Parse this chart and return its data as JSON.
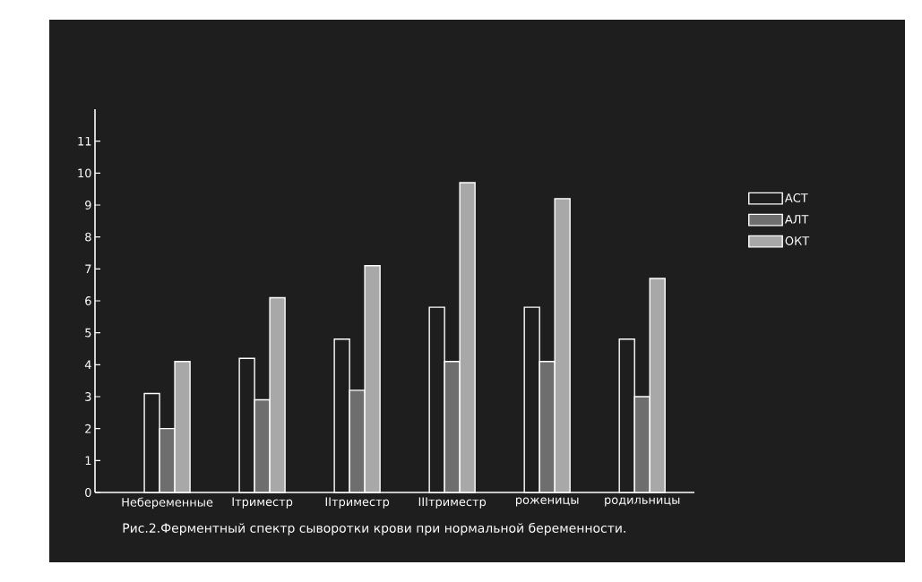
{
  "chart_data": {
    "type": "bar",
    "title": "Рис.2.Ферментный спектр сыворотки крови при нормальной беременности.",
    "categories": [
      "Небеременные",
      "Iтриместр",
      "IIтриместр",
      "IIIтриместр",
      "роженицы",
      "родильницы"
    ],
    "series": [
      {
        "name": "АСТ",
        "color": "#1e1e1e",
        "values": [
          3.1,
          4.2,
          4.8,
          5.8,
          5.8,
          4.8
        ]
      },
      {
        "name": "АЛТ",
        "color": "#6e6e6e",
        "values": [
          2.0,
          2.9,
          3.2,
          4.1,
          4.1,
          3.0
        ]
      },
      {
        "name": "ОКТ",
        "color": "#a8a8a8",
        "values": [
          4.1,
          6.1,
          7.1,
          9.7,
          9.2,
          6.7
        ]
      }
    ],
    "ylim": [
      0,
      12
    ],
    "yticks": [
      0,
      1,
      2,
      3,
      4,
      5,
      6,
      7,
      8,
      9,
      10,
      11
    ],
    "legend": "right"
  }
}
